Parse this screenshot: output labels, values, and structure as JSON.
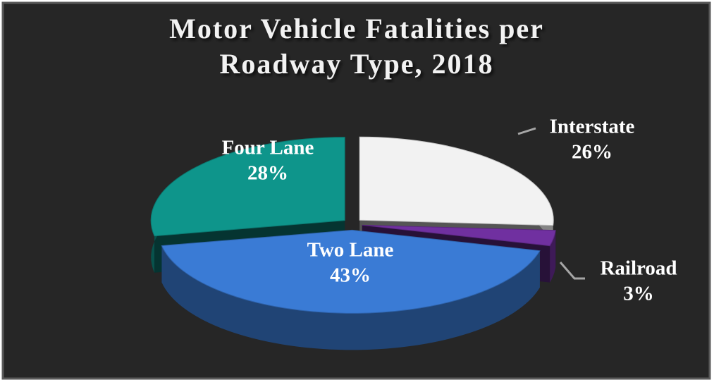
{
  "chart_data": {
    "type": "pie3d",
    "title": "Motor Vehicle Fatalities per Roadway Type, 2018",
    "categories": [
      "Interstate",
      "Railroad",
      "Two Lane",
      "Four Lane"
    ],
    "values": [
      26,
      3,
      43,
      28
    ],
    "value_labels": [
      "26%",
      "3%",
      "43%",
      "28%"
    ],
    "colors": [
      "#f2f2f2",
      "#7030a0",
      "#3a7bd5",
      "#0e958b"
    ]
  }
}
